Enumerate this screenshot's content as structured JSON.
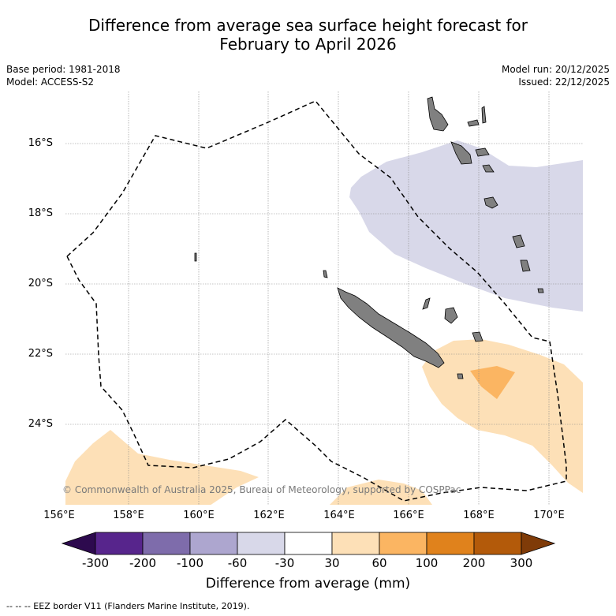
{
  "title": {
    "line1": "Difference from average sea surface height forecast for",
    "line2": "February to April 2026"
  },
  "info_left": {
    "base_period": "Base period: 1981-2018",
    "model": "Model: ACCESS-S2"
  },
  "info_right": {
    "model_run": "Model run: 20/12/2025",
    "issued": "Issued: 22/12/2025"
  },
  "latitude_labels": [
    "16°S",
    "18°S",
    "20°S",
    "22°S",
    "24°S"
  ],
  "longitude_labels": [
    "156°E",
    "158°E",
    "160°E",
    "162°E",
    "164°E",
    "166°E",
    "168°E",
    "170°E"
  ],
  "copyright": "© Commonwealth of Australia 2025, Bureau of Meteorology, supported by COSPPac",
  "colorbar": {
    "label": "Difference from average (mm)",
    "ticks": [
      "-300",
      "-200",
      "-100",
      "-60",
      "-30",
      "30",
      "60",
      "100",
      "200",
      "300"
    ],
    "colors": {
      "below_min": "#2d0a4e",
      "bin_1": "#57258c",
      "bin_2": "#7e6cab",
      "bin_3": "#ada6cf",
      "bin_4": "#d8d8e9",
      "bin_5": "#ffffff",
      "bin_6": "#fde0b7",
      "bin_7": "#fbb562",
      "bin_8": "#e0821c",
      "bin_9": "#b35a0a",
      "above_max": "#7f3b08"
    }
  },
  "map_colors": {
    "land": "#808080",
    "positive_30_60": "#fde0b7",
    "positive_60_100": "#fbb562",
    "negative_30_60": "#d8d8e9",
    "eez_border": "#000000",
    "gridline": "#888888"
  },
  "footnote": "--  --  -- EEZ border V11 (Flanders Marine Institute, 2019)."
}
